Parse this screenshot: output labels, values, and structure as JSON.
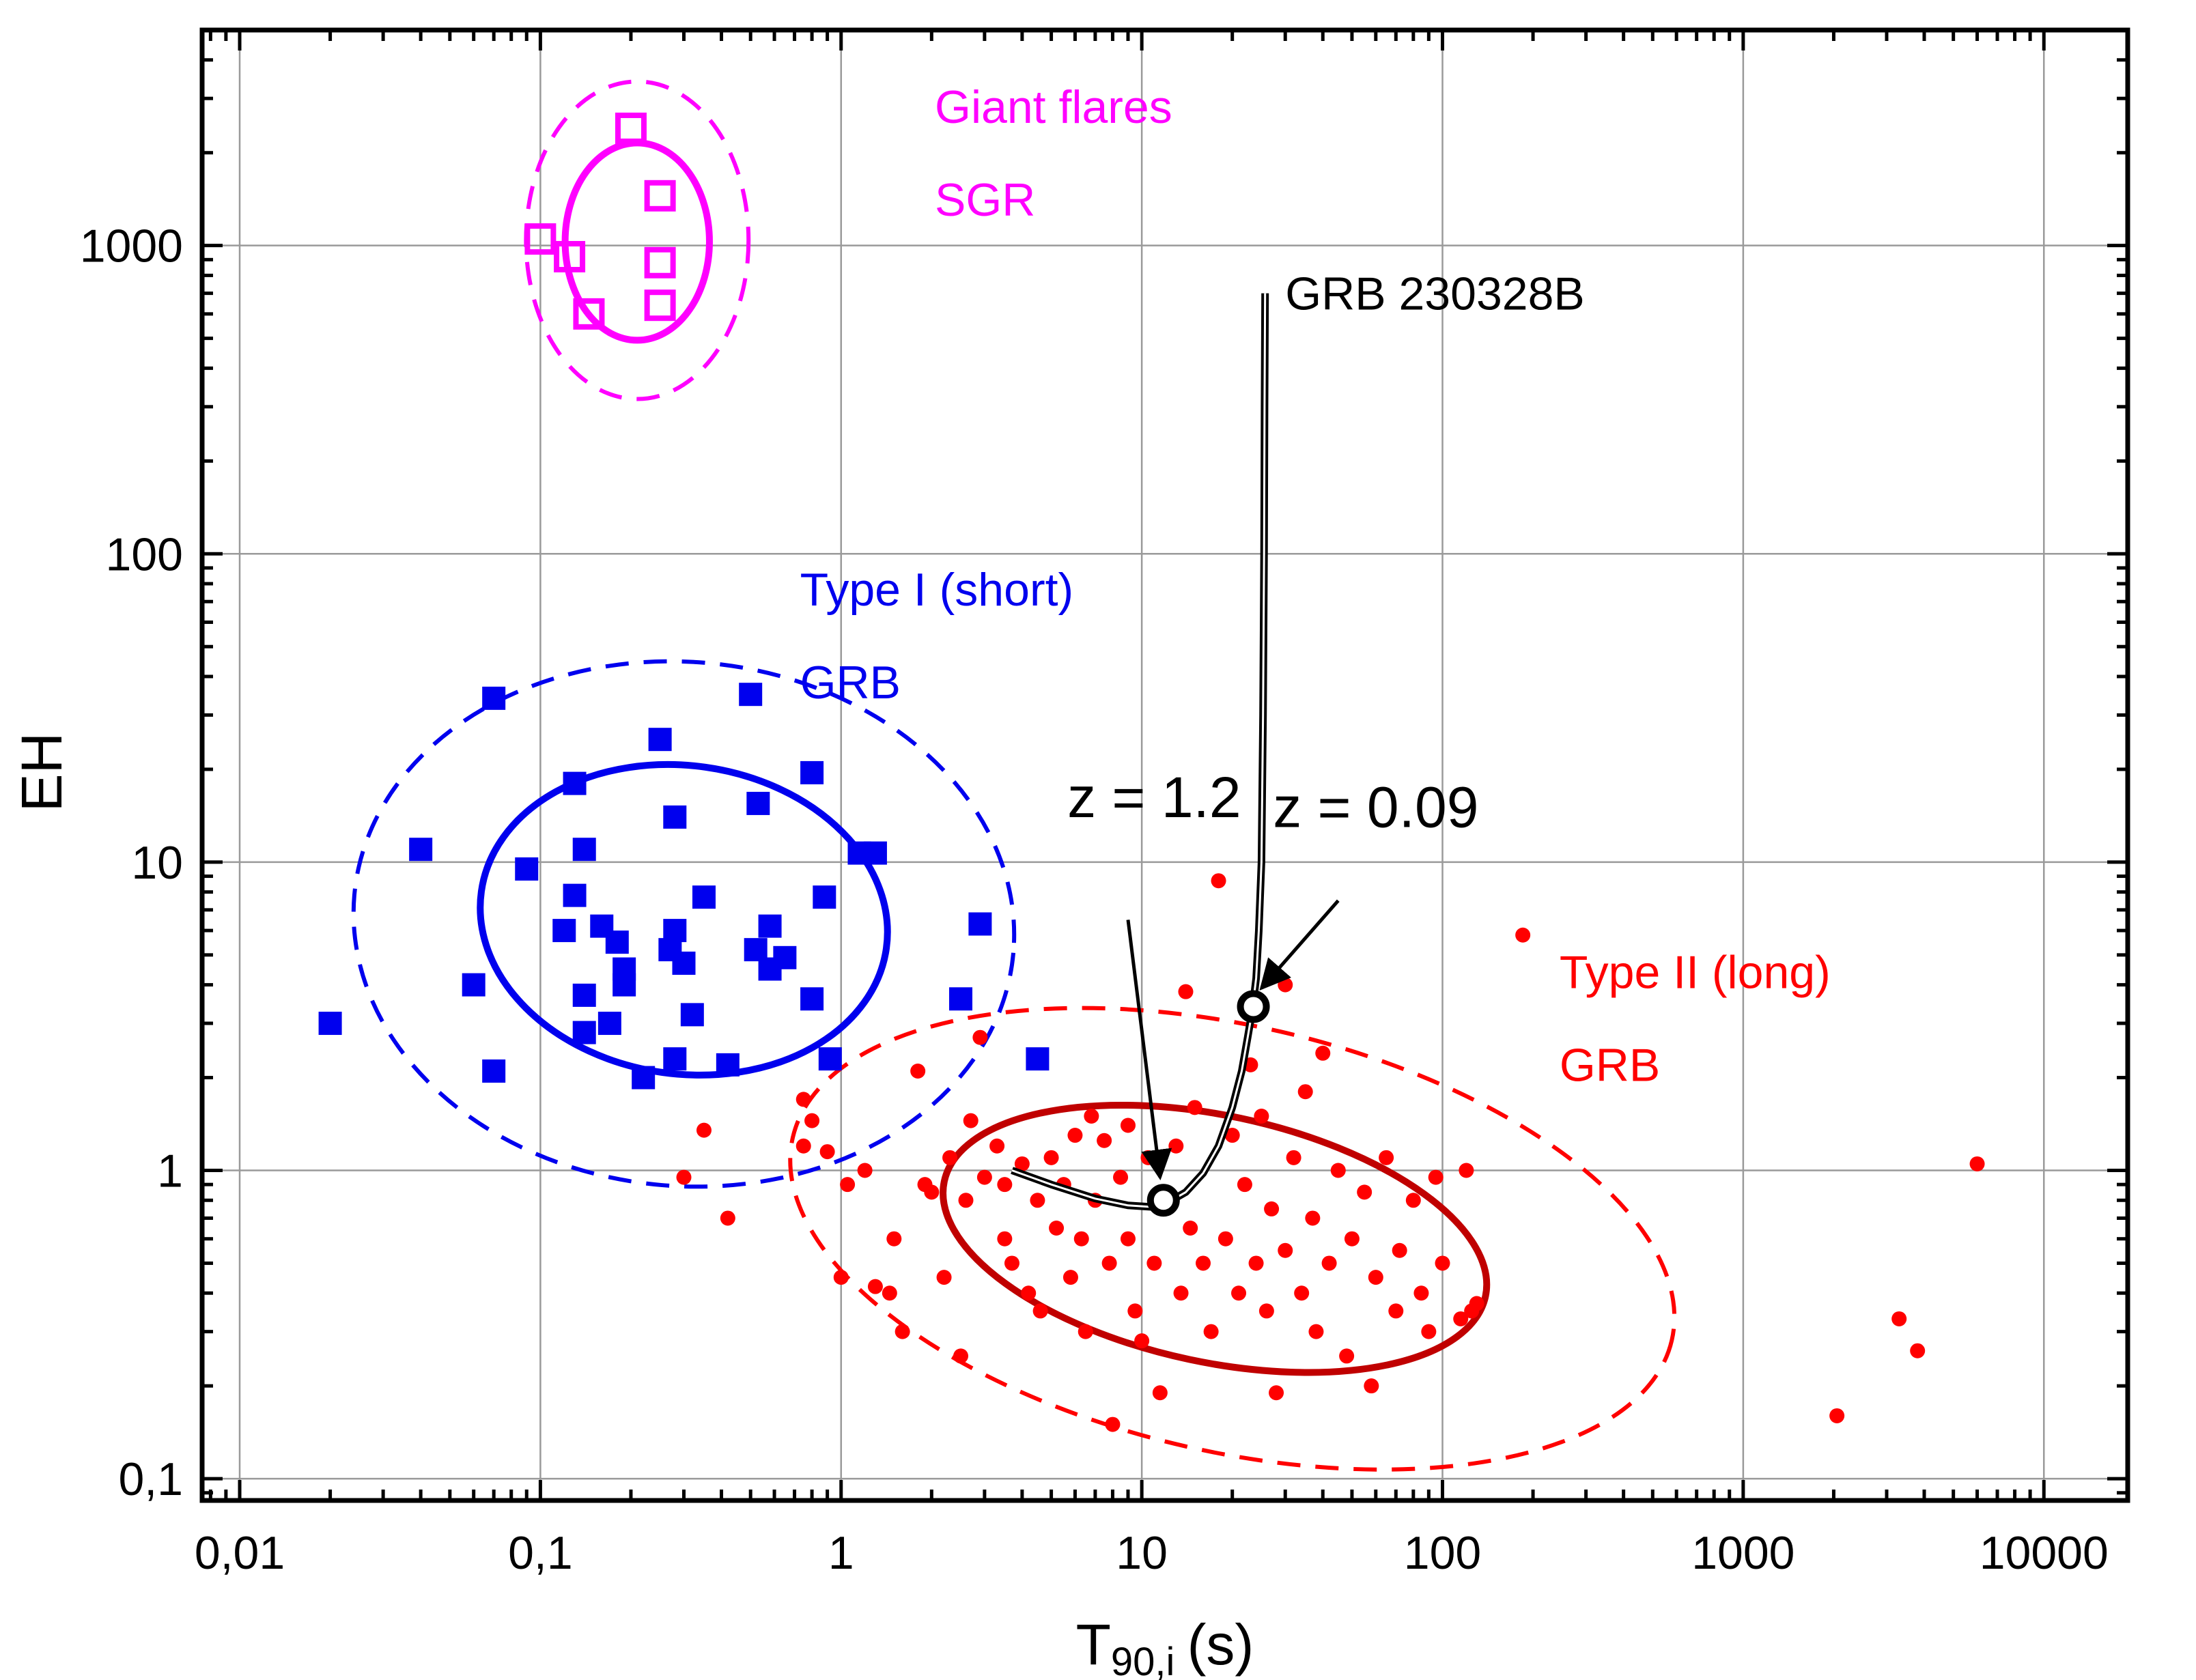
{
  "chart_data": {
    "type": "scatter",
    "xlabel": "T",
    "xlabel_sub": "90,i",
    "xlabel_unit": "(s)",
    "ylabel": "EH",
    "xlog": true,
    "ylog": true,
    "xlim": [
      0.0075,
      19000
    ],
    "ylim": [
      0.085,
      5000
    ],
    "grid": true,
    "x_ticks": [
      {
        "v": 0.01,
        "label": "0,01"
      },
      {
        "v": 0.1,
        "label": "0,1"
      },
      {
        "v": 1,
        "label": "1"
      },
      {
        "v": 10,
        "label": "10"
      },
      {
        "v": 100,
        "label": "100"
      },
      {
        "v": 1000,
        "label": "1000"
      },
      {
        "v": 10000,
        "label": "10000"
      }
    ],
    "y_ticks": [
      {
        "v": 0.1,
        "label": "0,1"
      },
      {
        "v": 1,
        "label": "1"
      },
      {
        "v": 10,
        "label": "10"
      },
      {
        "v": 100,
        "label": "100"
      },
      {
        "v": 1000,
        "label": "1000"
      }
    ],
    "colors": {
      "sgr": "#ff00ff",
      "short": "#0000ee",
      "long_points": "#ff0000",
      "long_ellipse": "#c00000",
      "track": "#000000"
    },
    "series": [
      {
        "name": "Giant flares SGR",
        "color": "#ff00ff",
        "marker": "open-square",
        "points": [
          [
            0.2,
            2400
          ],
          [
            0.25,
            1450
          ],
          [
            0.1,
            1050
          ],
          [
            0.125,
            920
          ],
          [
            0.25,
            880
          ],
          [
            0.145,
            600
          ],
          [
            0.25,
            640
          ]
        ]
      },
      {
        "name": "Type I (short) GRB",
        "color": "#0000ee",
        "marker": "filled-square",
        "points": [
          [
            0.02,
            3
          ],
          [
            0.04,
            11
          ],
          [
            0.06,
            4
          ],
          [
            0.07,
            34
          ],
          [
            0.07,
            2.1
          ],
          [
            0.09,
            9.5
          ],
          [
            0.12,
            6
          ],
          [
            0.13,
            18
          ],
          [
            0.13,
            7.8
          ],
          [
            0.14,
            11
          ],
          [
            0.14,
            3.7
          ],
          [
            0.14,
            2.8
          ],
          [
            0.16,
            6.2
          ],
          [
            0.17,
            3
          ],
          [
            0.18,
            5.5
          ],
          [
            0.19,
            4.5
          ],
          [
            0.19,
            4
          ],
          [
            0.22,
            2
          ],
          [
            0.25,
            25
          ],
          [
            0.27,
            5.2
          ],
          [
            0.28,
            14
          ],
          [
            0.28,
            6
          ],
          [
            0.28,
            2.3
          ],
          [
            0.3,
            4.7
          ],
          [
            0.32,
            3.2
          ],
          [
            0.35,
            7.7
          ],
          [
            0.42,
            2.2
          ],
          [
            0.5,
            35
          ],
          [
            0.52,
            5.2
          ],
          [
            0.53,
            15.5
          ],
          [
            0.58,
            6.2
          ],
          [
            0.58,
            4.5
          ],
          [
            0.65,
            4.9
          ],
          [
            0.8,
            3.6
          ],
          [
            0.8,
            19.5
          ],
          [
            0.88,
            7.7
          ],
          [
            0.92,
            2.3
          ],
          [
            1.15,
            10.7
          ],
          [
            1.3,
            10.7
          ],
          [
            2.5,
            3.6
          ],
          [
            2.9,
            6.3
          ],
          [
            4.5,
            2.3
          ]
        ]
      },
      {
        "name": "Type II (long) GRB",
        "color": "#ff0000",
        "marker": "filled-circle",
        "points": [
          [
            0.3,
            0.95
          ],
          [
            0.35,
            1.35
          ],
          [
            0.42,
            0.7
          ],
          [
            0.75,
            1.7
          ],
          [
            0.75,
            1.2
          ],
          [
            0.8,
            1.45
          ],
          [
            0.9,
            1.15
          ],
          [
            1,
            0.45
          ],
          [
            1.05,
            0.9
          ],
          [
            1.2,
            1
          ],
          [
            1.3,
            0.42
          ],
          [
            1.45,
            0.4
          ],
          [
            1.5,
            0.6
          ],
          [
            1.6,
            0.3
          ],
          [
            1.8,
            2.1
          ],
          [
            1.9,
            0.9
          ],
          [
            2,
            0.85
          ],
          [
            2.2,
            0.45
          ],
          [
            2.3,
            1.1
          ],
          [
            2.5,
            0.25
          ],
          [
            2.6,
            0.8
          ],
          [
            2.7,
            1.45
          ],
          [
            2.9,
            2.7
          ],
          [
            3,
            0.95
          ],
          [
            3.3,
            1.2
          ],
          [
            3.5,
            0.9
          ],
          [
            3.5,
            0.6
          ],
          [
            3.7,
            0.5
          ],
          [
            4,
            1.05
          ],
          [
            4.2,
            0.4
          ],
          [
            4.5,
            0.8
          ],
          [
            4.6,
            0.35
          ],
          [
            5,
            1.1
          ],
          [
            5.2,
            0.65
          ],
          [
            5.5,
            0.9
          ],
          [
            5.8,
            0.45
          ],
          [
            6,
            1.3
          ],
          [
            6.3,
            0.6
          ],
          [
            6.5,
            0.3
          ],
          [
            6.8,
            1.5
          ],
          [
            7,
            0.8
          ],
          [
            7.5,
            1.25
          ],
          [
            7.8,
            0.5
          ],
          [
            8,
            0.15
          ],
          [
            8.5,
            0.95
          ],
          [
            9,
            0.6
          ],
          [
            9,
            1.4
          ],
          [
            9.5,
            0.35
          ],
          [
            10,
            0.28
          ],
          [
            10.5,
            1.1
          ],
          [
            11,
            0.5
          ],
          [
            11.5,
            0.19
          ],
          [
            12,
            0.8
          ],
          [
            13,
            1.2
          ],
          [
            13.5,
            0.4
          ],
          [
            14,
            3.8
          ],
          [
            14.5,
            0.65
          ],
          [
            15,
            1.6
          ],
          [
            16,
            0.5
          ],
          [
            17,
            0.3
          ],
          [
            18,
            8.7
          ],
          [
            19,
            0.6
          ],
          [
            20,
            1.3
          ],
          [
            21,
            0.4
          ],
          [
            22,
            0.9
          ],
          [
            23,
            2.2
          ],
          [
            24,
            0.5
          ],
          [
            25,
            1.5
          ],
          [
            26,
            0.35
          ],
          [
            27,
            0.75
          ],
          [
            28,
            0.19
          ],
          [
            30,
            4
          ],
          [
            30,
            0.55
          ],
          [
            32,
            1.1
          ],
          [
            34,
            0.4
          ],
          [
            35,
            1.8
          ],
          [
            37,
            0.7
          ],
          [
            38,
            0.3
          ],
          [
            40,
            2.4
          ],
          [
            42,
            0.5
          ],
          [
            45,
            1
          ],
          [
            48,
            0.25
          ],
          [
            50,
            0.6
          ],
          [
            55,
            0.85
          ],
          [
            58,
            0.2
          ],
          [
            60,
            0.45
          ],
          [
            65,
            1.1
          ],
          [
            70,
            0.35
          ],
          [
            72,
            0.55
          ],
          [
            80,
            0.8
          ],
          [
            85,
            0.4
          ],
          [
            90,
            0.3
          ],
          [
            95,
            0.95
          ],
          [
            100,
            0.5
          ],
          [
            115,
            0.33
          ],
          [
            120,
            1
          ],
          [
            125,
            0.35
          ],
          [
            130,
            0.37
          ],
          [
            185,
            5.8
          ],
          [
            2050,
            0.16
          ],
          [
            3300,
            0.33
          ],
          [
            3800,
            0.26
          ],
          [
            6000,
            1.05
          ]
        ]
      }
    ],
    "ellipses": [
      {
        "name": "sgr-inner",
        "color": "#ff00ff",
        "style": "solid",
        "cx": 0.21,
        "cy": 1030,
        "rx_dec": 0.24,
        "ry_dec": 0.32,
        "rot": 0
      },
      {
        "name": "sgr-outer",
        "color": "#ff00ff",
        "style": "dashed",
        "cx": 0.21,
        "cy": 1040,
        "rx_dec": 0.37,
        "ry_dec": 0.515,
        "rot": 0
      },
      {
        "name": "short-inner",
        "color": "#0000ee",
        "style": "solid",
        "cx": 0.3,
        "cy": 6.5,
        "rx_dec": 0.68,
        "ry_dec": 0.5,
        "rot": 8
      },
      {
        "name": "short-outer",
        "color": "#0000ee",
        "style": "dashed",
        "cx": 0.3,
        "cy": 6.3,
        "rx_dec": 1.1,
        "ry_dec": 0.85,
        "rot": 5
      },
      {
        "name": "long-inner",
        "color": "#c00000",
        "style": "solid",
        "cx": 17.5,
        "cy": 0.6,
        "rx_dec": 0.92,
        "ry_dec": 0.4,
        "rot": 12
      },
      {
        "name": "long-outer",
        "color": "#ff0000",
        "style": "dashed",
        "cx": 20,
        "cy": 0.6,
        "rx_dec": 1.5,
        "ry_dec": 0.69,
        "rot": 13
      }
    ],
    "track": {
      "name": "GRB 230328B",
      "points": [
        [
          3.7,
          1.0
        ],
        [
          5,
          0.9
        ],
        [
          7,
          0.81
        ],
        [
          9,
          0.77
        ],
        [
          11,
          0.76
        ],
        [
          12,
          0.78
        ],
        [
          14,
          0.85
        ],
        [
          16,
          0.98
        ],
        [
          18,
          1.2
        ],
        [
          20,
          1.6
        ],
        [
          21.5,
          2.1
        ],
        [
          22.5,
          2.7
        ],
        [
          23.3,
          3.3
        ],
        [
          24,
          4.2
        ],
        [
          24.5,
          6
        ],
        [
          25,
          10
        ],
        [
          25.3,
          30
        ],
        [
          25.5,
          100
        ],
        [
          25.6,
          300
        ],
        [
          25.7,
          700
        ]
      ],
      "markers": [
        {
          "label": "z = 1.2",
          "x": 11.8,
          "y": 0.8,
          "text_x": 11,
          "text_y": 14,
          "arrow_start": [
            9,
            6.5
          ],
          "arrow_end": [
            11.5,
            0.95
          ]
        },
        {
          "label": "z = 0.09",
          "x": 23.5,
          "y": 3.4,
          "text_x": 60,
          "text_y": 13,
          "arrow_start": [
            45,
            7.5
          ],
          "arrow_end": [
            25,
            3.9
          ]
        }
      ]
    },
    "annotations": [
      {
        "text": "Giant flares",
        "x": 2.05,
        "y": 2500,
        "color": "#ff00ff"
      },
      {
        "text": "SGR",
        "x": 2.05,
        "y": 1250,
        "color": "#ff00ff"
      },
      {
        "text": "Type I (short)",
        "x": 0.73,
        "y": 68,
        "color": "#0000ee"
      },
      {
        "text": "GRB",
        "x": 0.73,
        "y": 34,
        "color": "#0000ee"
      },
      {
        "text": "GRB 230328B",
        "x": 30,
        "y": 620,
        "color": "#000000"
      },
      {
        "text": "Type II (long)",
        "x": 245,
        "y": 3.9,
        "color": "#ff0000"
      },
      {
        "text": "GRB",
        "x": 245,
        "y": 1.95,
        "color": "#ff0000"
      }
    ]
  }
}
